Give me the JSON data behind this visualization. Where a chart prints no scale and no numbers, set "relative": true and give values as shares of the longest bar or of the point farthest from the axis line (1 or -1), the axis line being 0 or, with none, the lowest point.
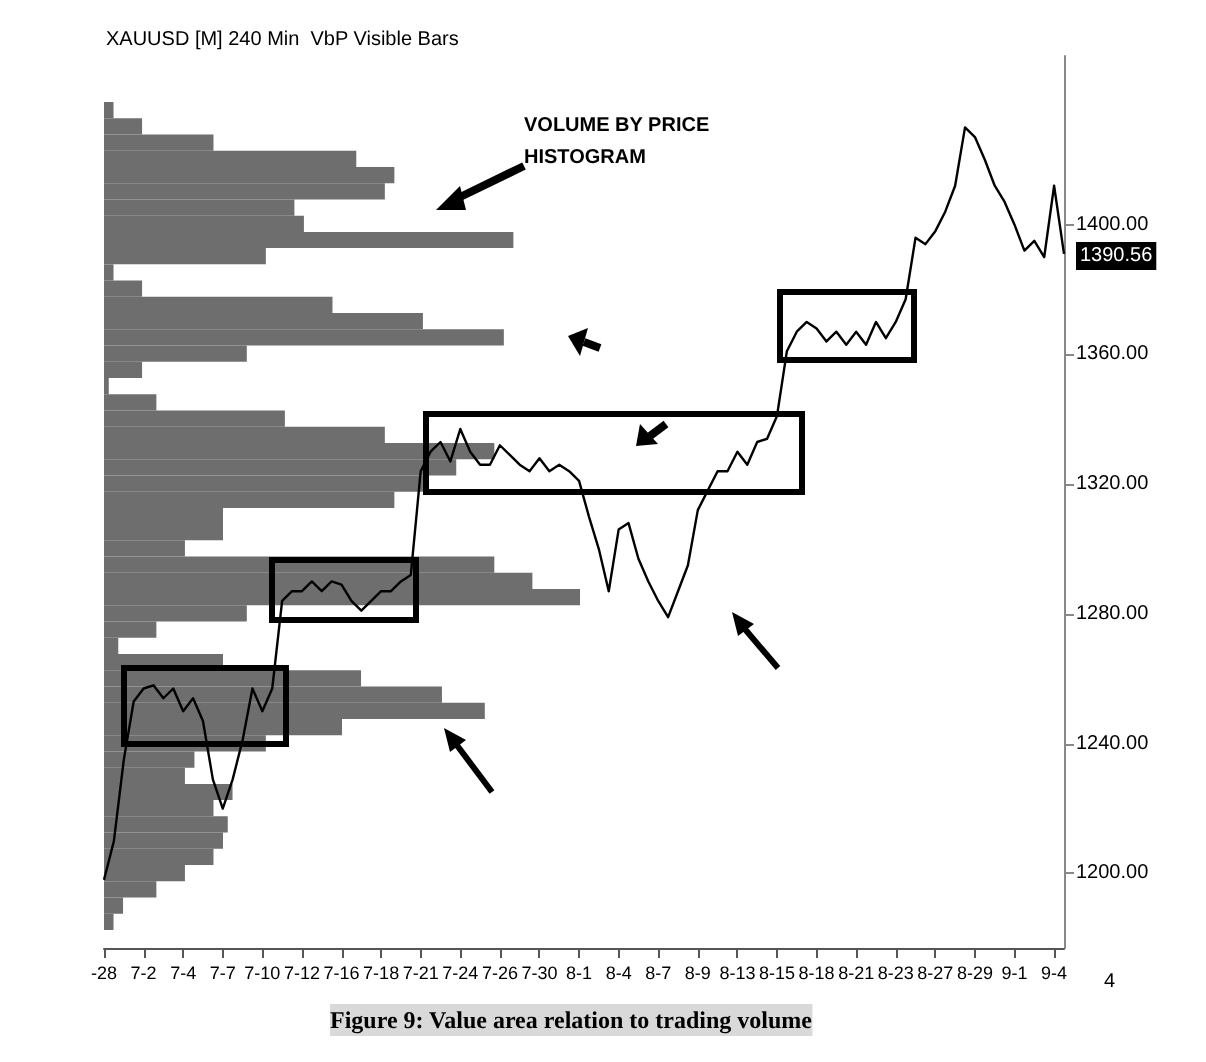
{
  "chart_data": [
    {
      "type": "line",
      "title": "XAUUSD [M] 240 Min  VbP Visible Bars",
      "categories": [
        "-28",
        null,
        null,
        null,
        "7-2",
        null,
        null,
        null,
        "7-4",
        null,
        null,
        null,
        "7-7",
        null,
        null,
        null,
        "7-10",
        null,
        null,
        null,
        "7-12",
        null,
        null,
        null,
        "7-16",
        null,
        null,
        null,
        "7-18",
        null,
        null,
        null,
        "7-21",
        null,
        null,
        null,
        "7-24",
        null,
        null,
        null,
        "7-26",
        null,
        null,
        null,
        "7-30",
        null,
        null,
        null,
        "8-1",
        null,
        null,
        null,
        "8-4",
        null,
        null,
        null,
        "8-7",
        null,
        null,
        null,
        "8-9",
        null,
        null,
        null,
        "8-13",
        null,
        null,
        null,
        "8-15",
        null,
        null,
        null,
        "8-18",
        null,
        null,
        null,
        "8-21",
        null,
        null,
        null,
        "8-23",
        null,
        null,
        null,
        "8-27",
        null,
        null,
        null,
        "8-29",
        null,
        null,
        null,
        "9-1",
        null,
        null,
        null,
        "9-4",
        null
      ],
      "series": [
        {
          "color": "#000000",
          "values": [
            1198,
            1210,
            1235,
            1253,
            1257,
            1258,
            1254,
            1257,
            1250,
            1254,
            1247,
            1229,
            1220,
            1229,
            1241,
            1257,
            1250,
            1257,
            1284,
            1287,
            1287,
            1290,
            1287,
            1290,
            1289,
            1284,
            1281,
            1284,
            1287,
            1287,
            1290,
            1292,
            1324,
            1330,
            1333,
            1327,
            1337,
            1330,
            1326,
            1326,
            1332,
            1329,
            1326,
            1324,
            1328,
            1324,
            1326,
            1324,
            1321,
            1310,
            1300,
            1287,
            1306,
            1308,
            1297,
            1290,
            1284,
            1279,
            1287,
            1295,
            1312,
            1318,
            1324,
            1324,
            1330,
            1326,
            1333,
            1334,
            1341,
            1361,
            1367,
            1370,
            1368,
            1364,
            1367,
            1363,
            1367,
            1363,
            1370,
            1365,
            1370,
            1377,
            1396,
            1394,
            1398,
            1404,
            1412,
            1430,
            1427,
            1420,
            1412,
            1407,
            1400,
            1392,
            1395,
            1390,
            1412,
            1391
          ]
        }
      ],
      "ylim": [
        1177,
        1452
      ],
      "yticks": [
        {
          "value": 1200,
          "label": "1200.00"
        },
        {
          "value": 1240,
          "label": "1240.00"
        },
        {
          "value": 1280,
          "label": "1280.00"
        },
        {
          "value": 1320,
          "label": "1320.00"
        },
        {
          "value": 1360,
          "label": "1360.00"
        },
        {
          "value": 1400,
          "label": "1400.00"
        }
      ],
      "marker": "none",
      "annotations": [
        "VOLUME BY PRICE\nHISTOGRAM",
        "4",
        "Figure 9: Value area relation to trading volume",
        "1390.56"
      ]
    },
    {
      "type": "bar",
      "orientation": "horizontal",
      "relative": true,
      "color": "#6e6e6e",
      "categories": [
        null,
        null,
        null,
        null,
        null,
        null,
        null,
        null,
        null,
        null,
        null,
        null,
        null,
        null,
        null,
        null,
        null,
        null,
        null,
        null,
        null,
        null,
        null,
        null,
        null,
        null,
        null,
        null,
        null,
        null,
        null,
        null,
        null,
        null,
        null,
        null,
        null,
        null,
        null,
        null,
        null,
        null,
        null,
        null,
        null,
        null,
        null,
        null,
        null,
        null,
        null
      ],
      "values": [
        0.02,
        0.08,
        0.23,
        0.53,
        0.61,
        0.59,
        0.4,
        0.42,
        0.86,
        0.34,
        0.02,
        0.08,
        0.48,
        0.67,
        0.84,
        0.3,
        0.08,
        0.01,
        0.11,
        0.38,
        0.59,
        0.82,
        0.74,
        0.67,
        0.61,
        0.25,
        0.25,
        0.17,
        0.82,
        0.9,
        1,
        0.3,
        0.11,
        0.03,
        0.25,
        0.54,
        0.71,
        0.8,
        0.5,
        0.34,
        0.19,
        0.17,
        0.27,
        0.23,
        0.26,
        0.25,
        0.23,
        0.17,
        0.11,
        0.04,
        0.02
      ]
    }
  ]
}
